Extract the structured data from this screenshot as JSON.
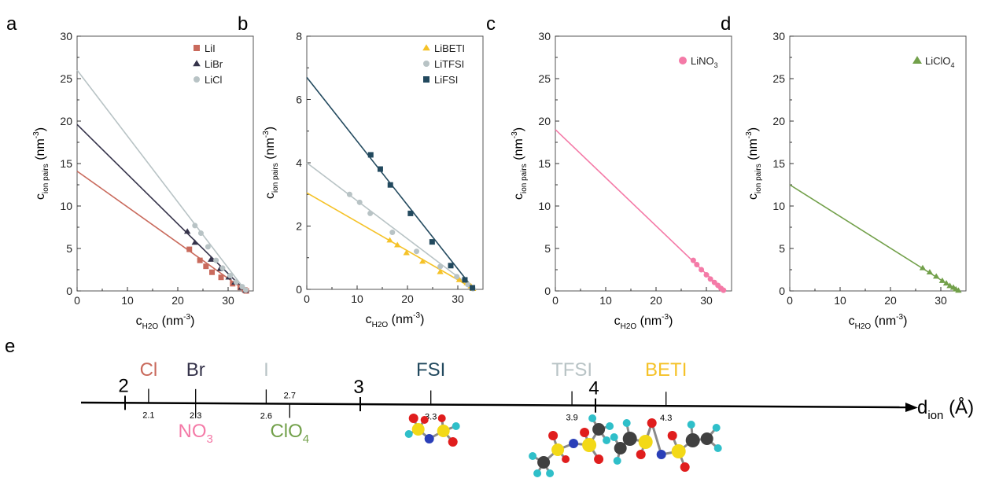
{
  "chart_data": [
    {
      "panel_label": "a",
      "type": "scatter",
      "xlabel": "c",
      "xlabel_sub": "H2O",
      "xlabel_unit": "(nm",
      "xlabel_unit_sup": "-3",
      "ylabel": "c",
      "ylabel_sub": "ion pairs",
      "ylabel_unit": "(nm",
      "ylabel_unit_sup": "-3",
      "xlim": [
        0,
        35
      ],
      "ylim": [
        0,
        30
      ],
      "xticks": [
        0,
        10,
        20,
        30
      ],
      "yticks": [
        0,
        5,
        10,
        15,
        20,
        25,
        30
      ],
      "legend_position": "top-right",
      "series": [
        {
          "name": "LiI",
          "marker": "square",
          "color": "#c96a5c",
          "points": [
            [
              22.3,
              4.9
            ],
            [
              24.4,
              3.6
            ],
            [
              25.6,
              2.9
            ],
            [
              26.8,
              2.2
            ],
            [
              28.6,
              1.6
            ],
            [
              30.9,
              0.85
            ],
            [
              32.4,
              0.4
            ],
            [
              33.3,
              0.12
            ],
            [
              33.6,
              0.0
            ]
          ],
          "fit": [
            [
              0,
              14.1
            ],
            [
              33.5,
              0.0
            ]
          ]
        },
        {
          "name": "LiBr",
          "marker": "triangle",
          "color": "#35334a",
          "points": [
            [
              21.9,
              7.0
            ],
            [
              23.4,
              5.7
            ],
            [
              26.6,
              3.7
            ],
            [
              28.4,
              2.6
            ],
            [
              30.1,
              1.6
            ],
            [
              31.3,
              1.0
            ],
            [
              32.6,
              0.4
            ],
            [
              33.5,
              0.05
            ]
          ],
          "fit": [
            [
              0,
              19.6
            ],
            [
              33.5,
              0.0
            ]
          ]
        },
        {
          "name": "LiCl",
          "marker": "circle",
          "color": "#b8c3c5",
          "points": [
            [
              23.4,
              7.7
            ],
            [
              24.6,
              6.8
            ],
            [
              26.0,
              5.2
            ],
            [
              27.6,
              3.6
            ],
            [
              28.9,
              2.7
            ],
            [
              30.4,
              1.8
            ],
            [
              31.6,
              1.05
            ],
            [
              32.8,
              0.5
            ],
            [
              33.5,
              0.1
            ]
          ],
          "fit": [
            [
              0,
              26.0
            ],
            [
              33.5,
              0.0
            ]
          ]
        }
      ]
    },
    {
      "panel_label": "b",
      "type": "scatter",
      "xlabel": "c",
      "xlabel_sub": "H2O",
      "xlabel_unit": "(nm",
      "xlabel_unit_sup": "-3",
      "ylabel": "c",
      "ylabel_sub": "ion pairs",
      "ylabel_unit": "(nm",
      "ylabel_unit_sup": "-3",
      "xlim": [
        0,
        35
      ],
      "ylim": [
        0,
        8
      ],
      "xticks": [
        0,
        10,
        20,
        30
      ],
      "yticks": [
        0,
        2,
        4,
        6,
        8
      ],
      "legend_position": "top-right",
      "series": [
        {
          "name": "LiBETI",
          "marker": "triangle",
          "color": "#f5c228",
          "points": [
            [
              16.5,
              1.55
            ],
            [
              18.0,
              1.4
            ],
            [
              19.8,
              1.15
            ],
            [
              23.0,
              0.88
            ],
            [
              26.5,
              0.55
            ],
            [
              30.3,
              0.3
            ],
            [
              31.8,
              0.2
            ],
            [
              32.6,
              0.1
            ],
            [
              33.0,
              0.02
            ]
          ],
          "fit": [
            [
              0,
              3.05
            ],
            [
              33.3,
              0.0
            ]
          ]
        },
        {
          "name": "LiTFSI",
          "marker": "circle",
          "color": "#b8c3c5",
          "points": [
            [
              8.5,
              3.0
            ],
            [
              10.5,
              2.75
            ],
            [
              12.6,
              2.4
            ],
            [
              17.0,
              1.8
            ],
            [
              21.8,
              1.2
            ],
            [
              26.5,
              0.72
            ],
            [
              29.8,
              0.4
            ],
            [
              32.0,
              0.15
            ],
            [
              33.0,
              0.02
            ]
          ],
          "fit": [
            [
              0,
              4.0
            ],
            [
              33.3,
              0.0
            ]
          ]
        },
        {
          "name": "LiFSI",
          "marker": "square",
          "color": "#22495e",
          "points": [
            [
              12.7,
              4.25
            ],
            [
              14.6,
              3.8
            ],
            [
              16.6,
              3.3
            ],
            [
              20.6,
              2.4
            ],
            [
              24.9,
              1.5
            ],
            [
              28.6,
              0.75
            ],
            [
              31.4,
              0.3
            ],
            [
              32.9,
              0.05
            ]
          ],
          "fit": [
            [
              0,
              6.7
            ],
            [
              33.2,
              0.0
            ]
          ]
        }
      ]
    },
    {
      "panel_label": "c",
      "type": "scatter",
      "xlabel": "c",
      "xlabel_sub": "H2O",
      "xlabel_unit": "(nm",
      "xlabel_unit_sup": "-3",
      "ylabel": "c",
      "ylabel_sub": "ion pairs",
      "ylabel_unit": "(nm",
      "ylabel_unit_sup": "-3",
      "xlim": [
        0,
        35
      ],
      "ylim": [
        0,
        30
      ],
      "xticks": [
        0,
        10,
        20,
        30
      ],
      "yticks": [
        0,
        5,
        10,
        15,
        20,
        25,
        30
      ],
      "legend_position": "top-right",
      "series": [
        {
          "name": "LiNO",
          "name_sub": "3",
          "marker": "circle",
          "color": "#f47aa7",
          "points": [
            [
              27.4,
              3.6
            ],
            [
              28.1,
              3.1
            ],
            [
              29.0,
              2.5
            ],
            [
              30.0,
              1.9
            ],
            [
              30.8,
              1.4
            ],
            [
              31.6,
              1.0
            ],
            [
              32.3,
              0.65
            ],
            [
              32.9,
              0.3
            ],
            [
              33.4,
              0.08
            ]
          ],
          "fit": [
            [
              0,
              19.0
            ],
            [
              33.5,
              0.0
            ]
          ]
        }
      ]
    },
    {
      "panel_label": "d",
      "type": "scatter",
      "xlabel": "c",
      "xlabel_sub": "H2O",
      "xlabel_unit": "(nm",
      "xlabel_unit_sup": "-3",
      "ylabel": "c",
      "ylabel_sub": "ion pairs",
      "ylabel_unit": "(nm",
      "ylabel_unit_sup": "-3",
      "xlim": [
        0,
        35
      ],
      "ylim": [
        0,
        30
      ],
      "xticks": [
        0,
        10,
        20,
        30
      ],
      "yticks": [
        0,
        5,
        10,
        15,
        20,
        25,
        30
      ],
      "legend_position": "top-right",
      "series": [
        {
          "name": "LiClO",
          "name_sub": "4",
          "marker": "triangle",
          "color": "#72a04a",
          "points": [
            [
              26.4,
              2.7
            ],
            [
              27.8,
              2.2
            ],
            [
              29.1,
              1.7
            ],
            [
              30.3,
              1.2
            ],
            [
              31.1,
              0.9
            ],
            [
              31.8,
              0.6
            ],
            [
              32.5,
              0.4
            ],
            [
              33.0,
              0.2
            ],
            [
              33.5,
              0.05
            ]
          ],
          "fit": [
            [
              0,
              12.5
            ],
            [
              33.5,
              0.0
            ]
          ]
        }
      ]
    }
  ],
  "scale_panel": {
    "panel_label": "e",
    "axis_label": "d",
    "axis_label_sub": "ion",
    "axis_label_unit": "(Å)",
    "xlim": [
      1.95,
      4.85
    ],
    "major_ticks": [
      {
        "label": "2",
        "value": 2
      },
      {
        "label": "3",
        "value": 3
      },
      {
        "label": "4",
        "value": 4
      }
    ],
    "ions": [
      {
        "name": "Cl",
        "sub": "",
        "value": 2.1,
        "value_label": "2.1",
        "color": "#c96a5c",
        "side": "top",
        "molecule": ""
      },
      {
        "name": "Br",
        "sub": "",
        "value": 2.3,
        "value_label": "2.3",
        "color": "#35334a",
        "side": "top",
        "molecule": ""
      },
      {
        "name": "NO",
        "sub": "3",
        "value": 2.3,
        "value_label": "",
        "color": "#f47aa7",
        "side": "bottom",
        "molecule": ""
      },
      {
        "name": "I",
        "sub": "",
        "value": 2.6,
        "value_label": "2.6",
        "color": "#b8c3c5",
        "side": "top",
        "molecule": ""
      },
      {
        "name": "ClO",
        "sub": "4",
        "value": 2.7,
        "value_label": "2.7",
        "color": "#72a04a",
        "side": "bottom",
        "molecule": ""
      },
      {
        "name": "FSI",
        "sub": "",
        "value": 3.3,
        "value_label": "3.3",
        "color": "#22495e",
        "side": "top",
        "molecule": "FSI"
      },
      {
        "name": "TFSI",
        "sub": "",
        "value": 3.9,
        "value_label": "3.9",
        "color": "#b8c3c5",
        "side": "top",
        "molecule": "TFSI"
      },
      {
        "name": "BETI",
        "sub": "",
        "value": 4.3,
        "value_label": "4.3",
        "color": "#f5c228",
        "side": "top",
        "molecule": "BETI"
      }
    ]
  }
}
